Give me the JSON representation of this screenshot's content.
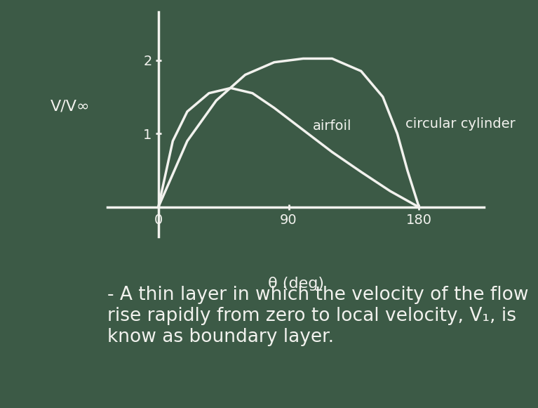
{
  "chart_data": {
    "type": "line",
    "x_label": "θ (deg)",
    "y_label": "V/V∞",
    "xlim": [
      -35,
      225
    ],
    "xticks": [
      0,
      90,
      180
    ],
    "ylim": [
      -0.4,
      2.65
    ],
    "yticks": [
      1,
      2
    ],
    "grid": false,
    "series": [
      {
        "name": "airfoil",
        "color": "#f2f2ee",
        "x": [
          0,
          10,
          20,
          35,
          50,
          65,
          80,
          100,
          120,
          140,
          160,
          180
        ],
        "values": [
          0,
          0.9,
          1.3,
          1.55,
          1.62,
          1.55,
          1.35,
          1.05,
          0.75,
          0.48,
          0.22,
          0
        ]
      },
      {
        "name": "circular cylinder",
        "color": "#f2f2ee",
        "x": [
          0,
          20,
          40,
          60,
          80,
          100,
          120,
          140,
          155,
          165,
          172,
          180
        ],
        "values": [
          0,
          0.9,
          1.45,
          1.8,
          1.97,
          2.02,
          2.02,
          1.85,
          1.5,
          1.0,
          0.5,
          0
        ]
      }
    ],
    "note": "- A thin layer in which the velocity of the flow rise rapidly from zero to local velocity, V₁, is know as boundary layer."
  }
}
